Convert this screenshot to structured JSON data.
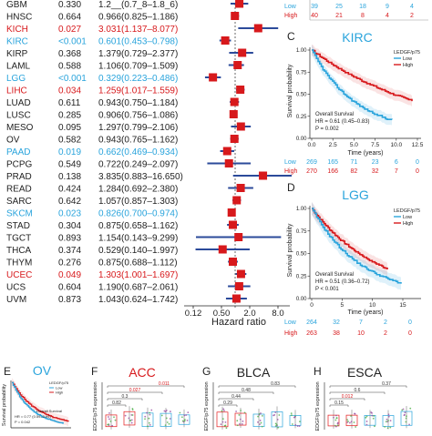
{
  "colors": {
    "sig_red": "#d7191c",
    "sig_blue": "#2aa4dc",
    "text": "#222222",
    "low": "#2aa4dc",
    "high": "#d7191c",
    "box_marker": "#e31a1c"
  },
  "forest": {
    "rows": [
      {
        "name": "GBM",
        "p": "0.330",
        "hr": "1.2__(0.7_8–1.8_6)",
        "sig": "none",
        "est": 1.2,
        "lo": 0.78,
        "hi": 1.86
      },
      {
        "name": "HNSC",
        "p": "0.664",
        "hr": "0.966(0.825–1.186)",
        "sig": "none",
        "est": 0.966,
        "lo": 0.825,
        "hi": 1.186
      },
      {
        "name": "KICH",
        "p": "0.027",
        "hr": "3.031(1.137–8.077)",
        "sig": "red",
        "est": 3.031,
        "lo": 1.137,
        "hi": 8.077
      },
      {
        "name": "KIRC",
        "p": "<0.001",
        "hr": "0.601(0.453–0.798)",
        "sig": "blue",
        "est": 0.601,
        "lo": 0.453,
        "hi": 0.798
      },
      {
        "name": "KIRP",
        "p": "0.368",
        "hr": "1.379(0.729–2.377)",
        "sig": "none",
        "est": 1.379,
        "lo": 0.729,
        "hi": 2.377
      },
      {
        "name": "LAML",
        "p": "0.588",
        "hr": "1.106(0.709–1.509)",
        "sig": "none",
        "est": 1.106,
        "lo": 0.709,
        "hi": 1.509
      },
      {
        "name": "LGG",
        "p": "<0.001",
        "hr": "0.329(0.223–0.486)",
        "sig": "blue",
        "est": 0.329,
        "lo": 0.223,
        "hi": 0.486
      },
      {
        "name": "LIHC",
        "p": "0.034",
        "hr": "1.259(1.017–1.559)",
        "sig": "red",
        "est": 1.259,
        "lo": 1.017,
        "hi": 1.559
      },
      {
        "name": "LUAD",
        "p": "0.611",
        "hr": "0.943(0.750–1.184)",
        "sig": "none",
        "est": 0.943,
        "lo": 0.75,
        "hi": 1.184
      },
      {
        "name": "LUSC",
        "p": "0.285",
        "hr": "0.906(0.756–1.086)",
        "sig": "none",
        "est": 0.906,
        "lo": 0.756,
        "hi": 1.086
      },
      {
        "name": "MESO",
        "p": "0.095",
        "hr": "1.297(0.799–2.106)",
        "sig": "none",
        "est": 1.297,
        "lo": 0.799,
        "hi": 2.106
      },
      {
        "name": "OV",
        "p": "0.582",
        "hr": "0.943(0.765–1.162)",
        "sig": "none",
        "est": 0.943,
        "lo": 0.765,
        "hi": 1.162
      },
      {
        "name": "PAAD",
        "p": "0.019",
        "hr": "0.662(0.469–0.934)",
        "sig": "blue",
        "est": 0.662,
        "lo": 0.469,
        "hi": 0.934
      },
      {
        "name": "PCPG",
        "p": "0.549",
        "hr": "0.722(0.249–2.097)",
        "sig": "none",
        "est": 0.722,
        "lo": 0.249,
        "hi": 2.097
      },
      {
        "name": "PRAD",
        "p": "0.138",
        "hr": "3.835(0.883–16.650)",
        "sig": "none",
        "est": 3.835,
        "lo": 0.883,
        "hi": 16.65
      },
      {
        "name": "READ",
        "p": "0.424",
        "hr": "1.284(0.692–2.380)",
        "sig": "none",
        "est": 1.284,
        "lo": 0.692,
        "hi": 2.38
      },
      {
        "name": "SARC",
        "p": "0.642",
        "hr": "1.057(0.857–1.303)",
        "sig": "none",
        "est": 1.057,
        "lo": 0.857,
        "hi": 1.303
      },
      {
        "name": "SKCM",
        "p": "0.023",
        "hr": "0.826(0.700–0.974)",
        "sig": "blue",
        "est": 0.826,
        "lo": 0.7,
        "hi": 0.974
      },
      {
        "name": "STAD",
        "p": "0.304",
        "hr": "0.875(0.658–1.162)",
        "sig": "none",
        "est": 0.875,
        "lo": 0.658,
        "hi": 1.162
      },
      {
        "name": "TGCT",
        "p": "0.893",
        "hr": "1.154(0.143–9.299)",
        "sig": "none",
        "est": 1.154,
        "lo": 0.143,
        "hi": 9.299
      },
      {
        "name": "THCA",
        "p": "0.374",
        "hr": "0.529(0.140–1.997)",
        "sig": "none",
        "est": 0.529,
        "lo": 0.14,
        "hi": 1.997
      },
      {
        "name": "THYM",
        "p": "0.276",
        "hr": "0.875(0.688–1.112)",
        "sig": "none",
        "est": 0.875,
        "lo": 0.688,
        "hi": 1.112
      },
      {
        "name": "UCEC",
        "p": "0.049",
        "hr": "1.303(1.001–1.697)",
        "sig": "red",
        "est": 1.303,
        "lo": 1.001,
        "hi": 1.697
      },
      {
        "name": "UCS",
        "p": "0.604",
        "hr": "1.190(0.687–2.061)",
        "sig": "none",
        "est": 1.19,
        "lo": 0.687,
        "hi": 2.061
      },
      {
        "name": "UVM",
        "p": "0.873",
        "hr": "1.043(0.624–1.742)",
        "sig": "none",
        "est": 1.043,
        "lo": 0.624,
        "hi": 1.742
      }
    ],
    "ticks": [
      "0.12",
      "0.50",
      "2.0",
      "8.0"
    ],
    "xlabel": "Hazard ratio"
  },
  "topright": {
    "low_label": "Low",
    "high_label": "High",
    "low_counts": [
      "39",
      "25",
      "18",
      "9",
      "4"
    ],
    "high_counts": [
      "40",
      "21",
      "8",
      "4",
      "2"
    ]
  },
  "panel_c": {
    "letter": "C",
    "title": "KIRC",
    "legend_title": "LEDGF/p75",
    "legend_low": "Low",
    "legend_high": "High",
    "ylabel": "Survival probability",
    "xlabel": "Time (years)",
    "yticks": [
      "1.00",
      "0.75",
      "0.50",
      "0.25",
      "0.00"
    ],
    "xticks": [
      "0.0",
      "2.5",
      "5.0",
      "7.5",
      "10.0",
      "12.5"
    ],
    "stats": [
      "Overall Survival",
      "HR = 0.61 (0.45–0.83)",
      "P = 0.002"
    ],
    "low_counts": [
      "269",
      "165",
      "71",
      "23",
      "6",
      "0"
    ],
    "high_counts": [
      "270",
      "166",
      "82",
      "32",
      "7",
      "0"
    ],
    "low_label": "Low",
    "high_label": "High"
  },
  "panel_d": {
    "letter": "D",
    "title": "LGG",
    "legend_title": "LEDGF/p75",
    "legend_low": "Low",
    "legend_high": "High",
    "ylabel": "Survival probability",
    "xlabel": "Time (years)",
    "yticks": [
      "1.00",
      "0.75",
      "0.50",
      "0.25",
      "0.00"
    ],
    "xticks": [
      "0",
      "5",
      "10",
      "15"
    ],
    "stats": [
      "Overall Survival",
      "HR = 0.51 (0.36–0.72)",
      "P < 0.001"
    ],
    "low_counts": [
      "264",
      "32",
      "7",
      "2",
      "0"
    ],
    "high_counts": [
      "263",
      "38",
      "10",
      "2",
      "0"
    ],
    "low_label": "Low",
    "high_label": "High"
  },
  "panel_e": {
    "letter": "E",
    "title": "OV",
    "legend_title": "LEDGF/p75",
    "legend_low": "Low",
    "legend_high": "High",
    "ylabel": "Survival probability",
    "stats": [
      "Overall Survival",
      "HR = 0.77 (0.59–0.99)",
      "P = 0.042"
    ]
  },
  "panel_f": {
    "letter": "F",
    "title": "ACC",
    "ylabel": "LEDGF/p75 expression",
    "pvals": [
      "0.011",
      "0.027",
      "0.3",
      "0.82"
    ]
  },
  "panel_g": {
    "letter": "G",
    "title": "BLCA",
    "ylabel": "LEDGF/p75 expression",
    "pvals": [
      "0.83",
      "0.48",
      "0.44",
      "0.29"
    ]
  },
  "panel_h": {
    "letter": "H",
    "title": "ESCA",
    "ylabel": "LEDGF/p75 expression",
    "pvals": [
      "0.37",
      "0.6",
      "0.012",
      "0.15"
    ]
  }
}
